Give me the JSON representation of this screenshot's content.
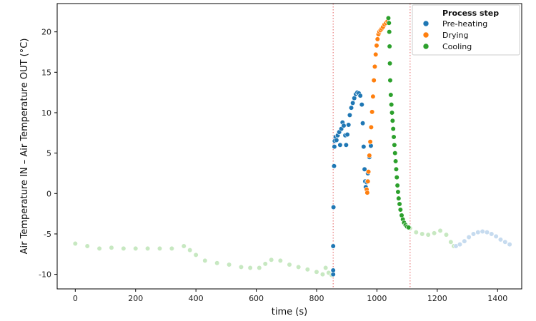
{
  "chart_data": {
    "type": "scatter",
    "xlabel": "time  (s)",
    "ylabel": "Air Temperature IN – Air Temperature OUT  (°C)",
    "xlim": [
      -60,
      1480
    ],
    "ylim": [
      -11.8,
      23.5
    ],
    "xticks": [
      0,
      200,
      400,
      600,
      800,
      1000,
      1200,
      1400
    ],
    "yticks": [
      -10,
      -5,
      0,
      5,
      10,
      15,
      20
    ],
    "grid": false,
    "legend": {
      "title": "Process step",
      "position": "top-right"
    },
    "vlines": [
      {
        "x": 855,
        "color": "#e87b7b",
        "style": "dotted"
      },
      {
        "x": 1110,
        "color": "#e87b7b",
        "style": "dotted"
      }
    ],
    "series": [
      {
        "name": "Pre-heating",
        "color": "#1f77b4",
        "points": [
          [
            855,
            -10
          ],
          [
            855,
            -9.5
          ],
          [
            855,
            -6.5
          ],
          [
            856,
            -1.7
          ],
          [
            858,
            3.4
          ],
          [
            859,
            5.8
          ],
          [
            860,
            6.5
          ],
          [
            863,
            7.0
          ],
          [
            866,
            6.6
          ],
          [
            870,
            7.2
          ],
          [
            875,
            7.6
          ],
          [
            878,
            6.0
          ],
          [
            882,
            8.0
          ],
          [
            886,
            8.8
          ],
          [
            890,
            8.4
          ],
          [
            895,
            7.2
          ],
          [
            898,
            6.0
          ],
          [
            902,
            7.3
          ],
          [
            906,
            8.5
          ],
          [
            910,
            9.7
          ],
          [
            915,
            10.6
          ],
          [
            920,
            11.2
          ],
          [
            925,
            11.8
          ],
          [
            930,
            12.3
          ],
          [
            935,
            12.5
          ],
          [
            940,
            12.4
          ],
          [
            945,
            12.1
          ],
          [
            950,
            11.0
          ],
          [
            953,
            8.7
          ],
          [
            956,
            5.8
          ],
          [
            959,
            3.0
          ],
          [
            961,
            1.5
          ],
          [
            963,
            0.8
          ],
          [
            966,
            1.4
          ],
          [
            970,
            2.5
          ],
          [
            975,
            4.5
          ],
          [
            980,
            5.9
          ]
        ]
      },
      {
        "name": "Drying",
        "color": "#ff7f0e",
        "points": [
          [
            966,
            0.5
          ],
          [
            968,
            0.1
          ],
          [
            970,
            1.5
          ],
          [
            972,
            2.7
          ],
          [
            975,
            4.7
          ],
          [
            978,
            6.4
          ],
          [
            981,
            8.2
          ],
          [
            984,
            10.1
          ],
          [
            987,
            12.0
          ],
          [
            990,
            14.0
          ],
          [
            993,
            15.7
          ],
          [
            996,
            17.2
          ],
          [
            999,
            18.3
          ],
          [
            1002,
            19.1
          ],
          [
            1005,
            19.7
          ],
          [
            1008,
            20.0
          ],
          [
            1012,
            20.2
          ],
          [
            1016,
            20.4
          ],
          [
            1020,
            20.6
          ],
          [
            1025,
            20.9
          ],
          [
            1030,
            21.1
          ],
          [
            1035,
            21.3
          ]
        ]
      },
      {
        "name": "Cooling",
        "color": "#2ca02c",
        "points": [
          [
            1038,
            21.7
          ],
          [
            1040,
            21.1
          ],
          [
            1041,
            20.0
          ],
          [
            1042,
            18.2
          ],
          [
            1043,
            16.1
          ],
          [
            1044,
            14.0
          ],
          [
            1046,
            12.2
          ],
          [
            1048,
            11.0
          ],
          [
            1050,
            10.0
          ],
          [
            1052,
            9.0
          ],
          [
            1054,
            8.0
          ],
          [
            1056,
            7.0
          ],
          [
            1058,
            6.0
          ],
          [
            1060,
            5.0
          ],
          [
            1062,
            4.0
          ],
          [
            1064,
            3.0
          ],
          [
            1066,
            2.0
          ],
          [
            1068,
            1.0
          ],
          [
            1070,
            0.2
          ],
          [
            1072,
            -0.6
          ],
          [
            1075,
            -1.3
          ],
          [
            1078,
            -2.0
          ],
          [
            1082,
            -2.7
          ],
          [
            1086,
            -3.2
          ],
          [
            1090,
            -3.6
          ],
          [
            1095,
            -3.9
          ],
          [
            1100,
            -4.1
          ],
          [
            1105,
            -4.2
          ]
        ]
      },
      {
        "name": "",
        "color": "#c7e8c1",
        "points": [
          [
            0,
            -6.2
          ],
          [
            40,
            -6.5
          ],
          [
            80,
            -6.8
          ],
          [
            120,
            -6.7
          ],
          [
            160,
            -6.8
          ],
          [
            200,
            -6.8
          ],
          [
            240,
            -6.8
          ],
          [
            280,
            -6.8
          ],
          [
            320,
            -6.8
          ],
          [
            360,
            -6.5
          ],
          [
            380,
            -7.0
          ],
          [
            400,
            -7.6
          ],
          [
            430,
            -8.3
          ],
          [
            470,
            -8.6
          ],
          [
            510,
            -8.8
          ],
          [
            550,
            -9.1
          ],
          [
            580,
            -9.2
          ],
          [
            610,
            -9.2
          ],
          [
            630,
            -8.7
          ],
          [
            650,
            -8.2
          ],
          [
            680,
            -8.3
          ],
          [
            710,
            -8.8
          ],
          [
            740,
            -9.1
          ],
          [
            770,
            -9.4
          ],
          [
            800,
            -9.7
          ],
          [
            820,
            -10.0
          ],
          [
            830,
            -9.2
          ],
          [
            840,
            -9.8
          ],
          [
            850,
            -10.1
          ],
          [
            1110,
            -4.3
          ],
          [
            1130,
            -4.8
          ],
          [
            1150,
            -5.0
          ],
          [
            1170,
            -5.1
          ],
          [
            1190,
            -4.9
          ],
          [
            1210,
            -4.6
          ],
          [
            1230,
            -5.1
          ],
          [
            1245,
            -6.0
          ],
          [
            1255,
            -6.5
          ]
        ]
      },
      {
        "name": "",
        "color": "#c6dbef",
        "points": [
          [
            1262,
            -6.5
          ],
          [
            1275,
            -6.3
          ],
          [
            1290,
            -5.9
          ],
          [
            1305,
            -5.4
          ],
          [
            1320,
            -5.0
          ],
          [
            1335,
            -4.8
          ],
          [
            1350,
            -4.7
          ],
          [
            1365,
            -4.8
          ],
          [
            1380,
            -5.0
          ],
          [
            1395,
            -5.3
          ],
          [
            1410,
            -5.7
          ],
          [
            1425,
            -6.0
          ],
          [
            1440,
            -6.3
          ]
        ]
      }
    ]
  }
}
